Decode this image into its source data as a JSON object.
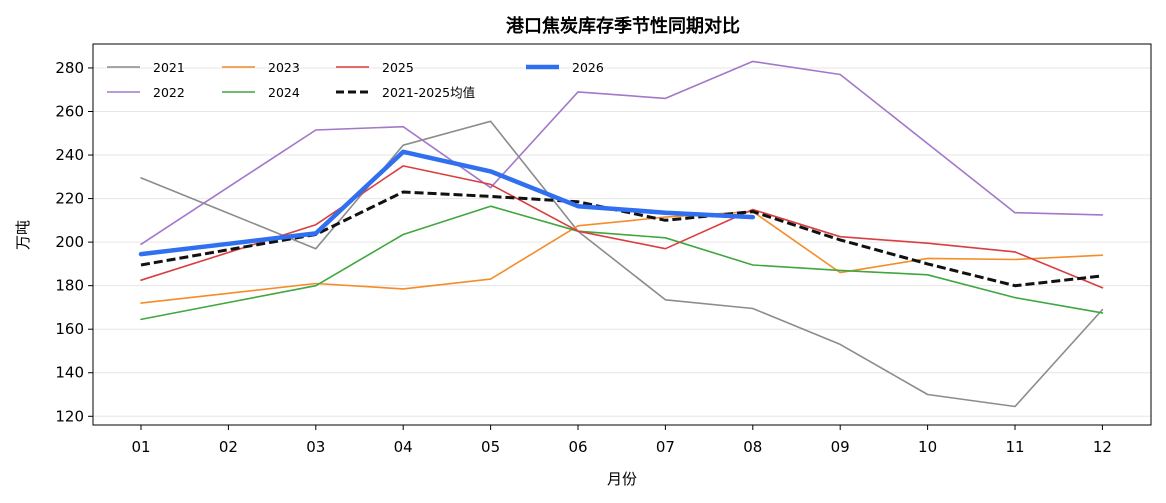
{
  "chart_data": {
    "type": "line",
    "title": "港口焦炭库存季节性同期对比",
    "xlabel": "月份",
    "ylabel": "万吨",
    "categories": [
      "01",
      "02",
      "03",
      "04",
      "05",
      "06",
      "07",
      "08",
      "09",
      "10",
      "11",
      "12"
    ],
    "ylim": [
      116,
      291
    ],
    "yticks": [
      120,
      140,
      160,
      180,
      200,
      220,
      240,
      260,
      280
    ],
    "grid": "horizontal",
    "legend_position": "top-left",
    "series": [
      {
        "name": "2021",
        "color": "#8c8c8c",
        "style": "solid",
        "width": "thin",
        "values": [
          229.5,
          null,
          197.0,
          244.5,
          255.5,
          205.0,
          173.5,
          169.5,
          153.0,
          130.0,
          124.5,
          169.0
        ]
      },
      {
        "name": "2022",
        "color": "#a278c8",
        "style": "solid",
        "width": "thin",
        "values": [
          199.0,
          null,
          251.5,
          253.0,
          225.0,
          269.0,
          266.0,
          283.0,
          277.0,
          null,
          213.5,
          212.5
        ]
      },
      {
        "name": "2023",
        "color": "#f58c28",
        "style": "solid",
        "width": "thin",
        "values": [
          172.0,
          null,
          181.0,
          178.5,
          183.0,
          207.5,
          211.5,
          214.0,
          186.0,
          192.5,
          192.0,
          194.0
        ]
      },
      {
        "name": "2024",
        "color": "#3fa73f",
        "style": "solid",
        "width": "thin",
        "values": [
          164.5,
          null,
          180.0,
          203.5,
          216.5,
          205.0,
          202.0,
          189.5,
          187.0,
          185.0,
          174.5,
          167.5
        ]
      },
      {
        "name": "2025",
        "color": "#d93f3f",
        "style": "solid",
        "width": "thin",
        "values": [
          182.5,
          null,
          208.0,
          235.0,
          226.5,
          205.0,
          197.0,
          215.0,
          202.5,
          199.5,
          195.5,
          179.0
        ]
      },
      {
        "name": "2021-2025均值",
        "color": "#111111",
        "style": "dashed",
        "width": "medium",
        "values": [
          189.5,
          null,
          203.5,
          223.0,
          221.0,
          218.5,
          210.0,
          214.0,
          201.0,
          190.0,
          180.0,
          184.5
        ]
      },
      {
        "name": "2026",
        "color": "#2f6ff0",
        "style": "solid",
        "width": "thick",
        "values": [
          194.5,
          null,
          204.0,
          241.5,
          232.5,
          216.5,
          213.5,
          211.5,
          null,
          null,
          null,
          null
        ]
      }
    ],
    "legend_order": [
      "2021",
      "2022",
      "2023",
      "2024",
      "2025",
      "2021-2025均值",
      "2026"
    ]
  }
}
